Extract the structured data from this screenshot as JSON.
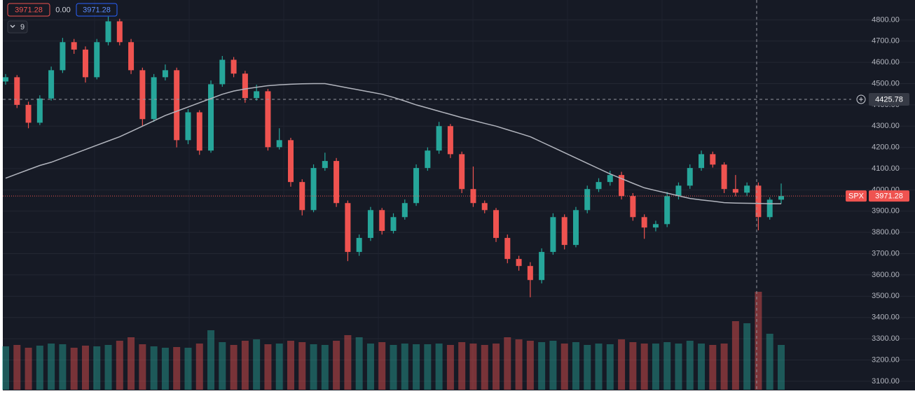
{
  "chart_data": {
    "type": "candlestick",
    "symbol": "SPX",
    "legend_values": [
      {
        "value": 3971.28,
        "label": "3971.28"
      },
      {
        "value": 0,
        "label": "0.00"
      },
      {
        "value": 3971.28,
        "label": "3971.28"
      }
    ],
    "indicator_count": 9,
    "crosshair_price": 4425.78,
    "last_price": 3971.28,
    "up_color": "#26a69a",
    "down_color": "#ef5350",
    "ma_color": "#b2b5be",
    "ylim": [
      3060,
      4890
    ],
    "yticks": [
      {
        "value": 3100,
        "label": "3100.00"
      },
      {
        "value": 3200,
        "label": "3200.00"
      },
      {
        "value": 3300,
        "label": "3300.00"
      },
      {
        "value": 3400,
        "label": "3400.00"
      },
      {
        "value": 3500,
        "label": "3500.00"
      },
      {
        "value": 3600,
        "label": "3600.00"
      },
      {
        "value": 3700,
        "label": "3700.00"
      },
      {
        "value": 3800,
        "label": "3800.00"
      },
      {
        "value": 3900,
        "label": "3900.00"
      },
      {
        "value": 4000,
        "label": "4000.00"
      },
      {
        "value": 4100,
        "label": "4100.00"
      },
      {
        "value": 4200,
        "label": "4200.00"
      },
      {
        "value": 4300,
        "label": "4300.00"
      },
      {
        "value": 4400,
        "label": "4400.00"
      },
      {
        "value": 4500,
        "label": "4500.00"
      },
      {
        "value": 4600,
        "label": "4600.00"
      },
      {
        "value": 4700,
        "label": "4700.00"
      },
      {
        "value": 4800,
        "label": "4800.00"
      }
    ],
    "grid": true,
    "volume_lim": [
      0,
      150
    ],
    "open": [
      4510,
      4530,
      4400,
      4316,
      4430,
      4563,
      4695,
      4660,
      4530,
      4695,
      4793,
      4695,
      4563,
      4333,
      4530,
      4563,
      4234,
      4365,
      4185,
      4497,
      4612,
      4547,
      4432,
      4464,
      4201,
      4234,
      4037,
      3905,
      4103,
      4136,
      3938,
      3708,
      3774,
      3905,
      3807,
      3872,
      3938,
      4103,
      4185,
      4300,
      4168,
      4004,
      3938,
      3905,
      3774,
      3675,
      3642,
      3576,
      3708,
      3872,
      3741,
      3905,
      4004,
      4037,
      4070,
      3971,
      3872,
      3823,
      3839,
      3971,
      4020,
      4103,
      4168,
      4119,
      4004,
      3987,
      4020,
      3872,
      3954
    ],
    "high": [
      4545,
      4540,
      4415,
      4445,
      4580,
      4715,
      4710,
      4675,
      4710,
      4815,
      4805,
      4710,
      4575,
      4545,
      4590,
      4575,
      4380,
      4375,
      4515,
      4630,
      4625,
      4560,
      4495,
      4475,
      4290,
      4245,
      4050,
      4120,
      4175,
      4150,
      3950,
      3790,
      3920,
      3915,
      3890,
      3955,
      4120,
      4200,
      4320,
      4310,
      4180,
      4110,
      3950,
      3915,
      3790,
      3690,
      3660,
      3725,
      3890,
      3885,
      3920,
      4020,
      4055,
      4090,
      4085,
      3985,
      3885,
      3855,
      3990,
      4035,
      4120,
      4185,
      4180,
      4130,
      4070,
      4035,
      4035,
      3965,
      4030
    ],
    "low": [
      4495,
      4385,
      4290,
      4305,
      4420,
      4550,
      4640,
      4505,
      4520,
      4680,
      4680,
      4545,
      4300,
      4320,
      4515,
      4200,
      4215,
      4165,
      4175,
      4485,
      4530,
      4410,
      4420,
      4185,
      4190,
      4015,
      3880,
      3895,
      4090,
      3920,
      3665,
      3690,
      3760,
      3790,
      3795,
      3860,
      3925,
      4090,
      4170,
      4150,
      3985,
      3920,
      3890,
      3755,
      3655,
      3620,
      3495,
      3560,
      3695,
      3720,
      3730,
      3890,
      3990,
      4020,
      3955,
      3855,
      3770,
      3805,
      3825,
      3955,
      4005,
      4090,
      4105,
      3985,
      3970,
      3970,
      3810,
      3860,
      3935
    ],
    "close": [
      4530,
      4400,
      4316,
      4430,
      4563,
      4695,
      4660,
      4530,
      4695,
      4793,
      4695,
      4563,
      4333,
      4530,
      4563,
      4234,
      4365,
      4185,
      4497,
      4612,
      4547,
      4432,
      4464,
      4201,
      4234,
      4037,
      3905,
      4103,
      4136,
      3938,
      3708,
      3774,
      3905,
      3807,
      3872,
      3938,
      4103,
      4185,
      4300,
      4168,
      4004,
      3938,
      3905,
      3774,
      3675,
      3642,
      3576,
      3708,
      3872,
      3741,
      3905,
      4004,
      4037,
      4070,
      3971,
      3872,
      3823,
      3839,
      3971,
      4020,
      4103,
      4168,
      4119,
      4004,
      3987,
      4020,
      3872,
      3954,
      3971.28
    ],
    "volume": [
      62,
      64,
      60,
      63,
      66,
      65,
      60,
      63,
      62,
      64,
      70,
      75,
      65,
      62,
      60,
      61,
      60,
      66,
      85,
      68,
      64,
      70,
      72,
      65,
      66,
      70,
      68,
      65,
      64,
      70,
      78,
      75,
      66,
      68,
      64,
      66,
      65,
      65,
      66,
      64,
      68,
      66,
      64,
      66,
      75,
      72,
      70,
      68,
      70,
      66,
      68,
      64,
      66,
      65,
      72,
      68,
      66,
      66,
      68,
      66,
      70,
      66,
      64,
      66,
      98,
      95,
      140,
      80,
      64
    ],
    "ma": [
      4055,
      4075,
      4095,
      4115,
      4130,
      4150,
      4170,
      4190,
      4210,
      4230,
      4250,
      4275,
      4300,
      4325,
      4350,
      4370,
      4390,
      4410,
      4430,
      4450,
      4465,
      4475,
      4483,
      4490,
      4494,
      4497,
      4499,
      4500,
      4500,
      4490,
      4480,
      4470,
      4460,
      4450,
      4435,
      4418,
      4400,
      4385,
      4370,
      4355,
      4340,
      4327,
      4313,
      4300,
      4283,
      4267,
      4250,
      4225,
      4200,
      4175,
      4150,
      4125,
      4100,
      4075,
      4053,
      4031,
      4010,
      3997,
      3985,
      3972,
      3960,
      3953,
      3947,
      3940,
      3938,
      3937,
      3936,
      3935,
      3935
    ]
  }
}
